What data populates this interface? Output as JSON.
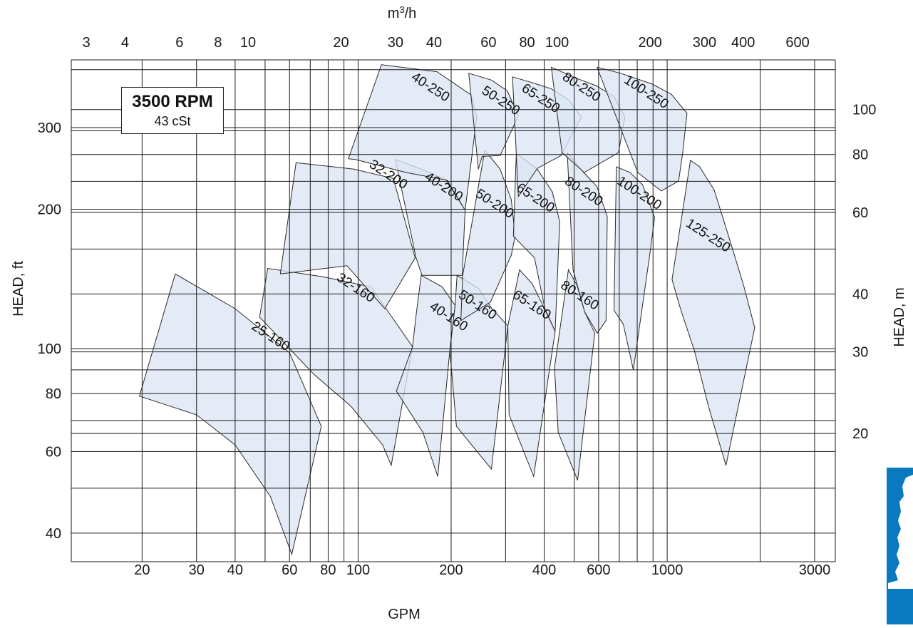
{
  "chart_data": {
    "type": "area",
    "subtitle_box": {
      "rpm": "3500 RPM",
      "viscosity": "43 cSt"
    },
    "x_axis_bottom": {
      "label": "GPM",
      "scale": "log",
      "range": [
        11.8,
        3500
      ],
      "ticks": [
        20,
        30,
        40,
        60,
        80,
        100,
        200,
        400,
        600,
        1000,
        3000
      ],
      "tick_labels": [
        "20",
        "30",
        "40",
        "60",
        "80",
        "100",
        "200",
        "400",
        "600",
        "1000",
        "3000"
      ]
    },
    "x_axis_top": {
      "label": "m3/h",
      "ticks": [
        3,
        4,
        6,
        8,
        10,
        20,
        30,
        40,
        60,
        80,
        100,
        200,
        300,
        400,
        600
      ],
      "tick_labels": [
        "3",
        "4",
        "6",
        "8",
        "10",
        "20",
        "30",
        "40",
        "60",
        "80",
        "100",
        "200",
        "300",
        "400",
        "600"
      ]
    },
    "y_axis_left": {
      "label": "HEAD, ft",
      "scale": "log",
      "range": [
        34.7,
        420
      ],
      "ticks": [
        40,
        60,
        80,
        100,
        200,
        300
      ],
      "tick_labels": [
        "40",
        "60",
        "80",
        "100",
        "200",
        "300"
      ]
    },
    "y_axis_right": {
      "label": "HEAD, m",
      "ticks": [
        20,
        30,
        40,
        60,
        80,
        100
      ],
      "tick_labels": [
        "20",
        "30",
        "40",
        "60",
        "80",
        "100"
      ]
    },
    "grid": true,
    "series": [
      {
        "name": "25-160",
        "label_at": [
          52,
          106
        ],
        "points": [
          [
            19.6,
            79
          ],
          [
            25.6,
            145
          ],
          [
            40,
            122
          ],
          [
            60,
            98
          ],
          [
            76,
            68
          ],
          [
            61,
            36
          ],
          [
            52,
            48
          ],
          [
            40,
            62
          ],
          [
            30,
            72
          ]
        ]
      },
      {
        "name": "32-160",
        "label_at": [
          98,
          135
        ],
        "points": [
          [
            51,
            149
          ],
          [
            77,
            143
          ],
          [
            110,
            136
          ],
          [
            150,
            101
          ],
          [
            128,
            56
          ],
          [
            120,
            62
          ],
          [
            95,
            75
          ],
          [
            72,
            88
          ],
          [
            48,
            117
          ]
        ]
      },
      {
        "name": "32-200",
        "label_at": [
          125,
          237
        ],
        "points": [
          [
            63,
            252
          ],
          [
            97,
            244
          ],
          [
            130,
            233
          ],
          [
            153,
            157
          ],
          [
            122,
            122
          ],
          [
            92,
            151
          ],
          [
            56,
            145
          ]
        ]
      },
      {
        "name": "40-160",
        "label_at": [
          196,
          117
        ],
        "points": [
          [
            160,
            144
          ],
          [
            187,
            136
          ],
          [
            206,
            124
          ],
          [
            198,
            99
          ],
          [
            181,
            53
          ],
          [
            162,
            66
          ],
          [
            133,
            81
          ],
          [
            150,
            101
          ],
          [
            154,
            118
          ]
        ]
      },
      {
        "name": "40-200",
        "label_at": [
          189,
          223
        ],
        "points": [
          [
            132,
            256
          ],
          [
            163,
            243
          ],
          [
            193,
            231
          ],
          [
            222,
            199
          ],
          [
            217,
            144
          ],
          [
            161,
            144
          ],
          [
            154,
            157
          ]
        ]
      },
      {
        "name": "40-250",
        "label_at": [
          171,
          366
        ],
        "points": [
          [
            119,
            410
          ],
          [
            180,
            396
          ],
          [
            232,
            353
          ],
          [
            242,
            316
          ],
          [
            222,
            199
          ],
          [
            194,
            231
          ],
          [
            143,
            240
          ],
          [
            98,
            256
          ],
          [
            93,
            257
          ]
        ]
      },
      {
        "name": "50-160",
        "label_at": [
          243,
          124
        ],
        "points": [
          [
            209,
            144
          ],
          [
            245,
            135
          ],
          [
            271,
            122
          ],
          [
            305,
            112
          ],
          [
            270,
            55
          ],
          [
            208,
            68
          ],
          [
            198,
            99
          ],
          [
            206,
            124
          ]
        ]
      },
      {
        "name": "50-200",
        "label_at": [
          276,
          205
        ],
        "points": [
          [
            257,
            268
          ],
          [
            288,
            244
          ],
          [
            313,
            210
          ],
          [
            322,
            175
          ],
          [
            313,
            159
          ],
          [
            268,
            126
          ],
          [
            215,
            115
          ],
          [
            218,
            144
          ]
        ]
      },
      {
        "name": "50-250",
        "label_at": [
          289,
          342
        ],
        "points": [
          [
            228,
            393
          ],
          [
            270,
            380
          ],
          [
            304,
            360
          ],
          [
            330,
            318
          ],
          [
            288,
            261
          ],
          [
            252,
            260
          ],
          [
            245,
            244
          ]
        ]
      },
      {
        "name": "65-160",
        "label_at": [
          364,
          124
        ],
        "points": [
          [
            333,
            148
          ],
          [
            366,
            138
          ],
          [
            401,
            122
          ],
          [
            434,
            109
          ],
          [
            370,
            53
          ],
          [
            308,
            72
          ],
          [
            305,
            112
          ]
        ]
      },
      {
        "name": "65-200",
        "label_at": [
          374,
          211
        ],
        "points": [
          [
            325,
            264
          ],
          [
            380,
            244
          ],
          [
            425,
            218
          ],
          [
            449,
            188
          ],
          [
            434,
            109
          ],
          [
            402,
            122
          ],
          [
            372,
            157
          ],
          [
            318,
            175
          ]
        ]
      },
      {
        "name": "65-250",
        "label_at": [
          389,
          346
        ],
        "points": [
          [
            316,
            386
          ],
          [
            361,
            376
          ],
          [
            421,
            364
          ],
          [
            481,
            344
          ],
          [
            528,
            316
          ],
          [
            453,
            261
          ],
          [
            380,
            245
          ],
          [
            330,
            213
          ]
        ]
      },
      {
        "name": "80-160",
        "label_at": [
          520,
          130
        ],
        "points": [
          [
            479,
            148
          ],
          [
            511,
            137
          ],
          [
            541,
            120
          ],
          [
            583,
            108
          ],
          [
            513,
            52
          ],
          [
            444,
            66
          ],
          [
            432,
            91
          ]
        ]
      },
      {
        "name": "80-200",
        "label_at": [
          536,
          218
        ],
        "points": [
          [
            475,
            265
          ],
          [
            537,
            240
          ],
          [
            592,
            224
          ],
          [
            640,
            193
          ],
          [
            634,
            115
          ],
          [
            594,
            108
          ],
          [
            541,
            120
          ],
          [
            496,
            148
          ]
        ]
      },
      {
        "name": "80-250",
        "label_at": [
          527,
          366
        ],
        "points": [
          [
            422,
            405
          ],
          [
            505,
            384
          ],
          [
            592,
            369
          ],
          [
            673,
            350
          ],
          [
            730,
            316
          ],
          [
            696,
            265
          ],
          [
            539,
            240
          ],
          [
            457,
            265
          ]
        ]
      },
      {
        "name": "100-200",
        "label_at": [
          811,
          216
        ],
        "points": [
          [
            685,
            247
          ],
          [
            758,
            240
          ],
          [
            832,
            226
          ],
          [
            911,
            192
          ],
          [
            880,
            161
          ],
          [
            777,
            90
          ],
          [
            721,
            113
          ],
          [
            673,
            121
          ]
        ]
      },
      {
        "name": "100-250",
        "label_at": [
          854,
          357
        ],
        "points": [
          [
            593,
            405
          ],
          [
            707,
            393
          ],
          [
            890,
            373
          ],
          [
            1032,
            354
          ],
          [
            1159,
            322
          ],
          [
            1122,
            264
          ],
          [
            1089,
            230
          ],
          [
            957,
            219
          ],
          [
            803,
            240
          ]
        ]
      },
      {
        "name": "125-250",
        "label_at": [
          1354,
          175
        ],
        "points": [
          [
            1190,
            255
          ],
          [
            1273,
            247
          ],
          [
            1420,
            220
          ],
          [
            1610,
            168
          ],
          [
            1773,
            136
          ],
          [
            1920,
            111
          ],
          [
            1550,
            56
          ],
          [
            1361,
            75
          ],
          [
            1225,
            99
          ],
          [
            1108,
            121
          ],
          [
            1037,
            141
          ]
        ]
      }
    ]
  },
  "colors": {
    "zone_fill": "#dce5f3",
    "zone_stroke": "#2a2a2a",
    "grid": "#1a1a1a",
    "brand_blue": "#0a79c0"
  },
  "logo": {
    "icon": "pump-silhouette-icon"
  }
}
